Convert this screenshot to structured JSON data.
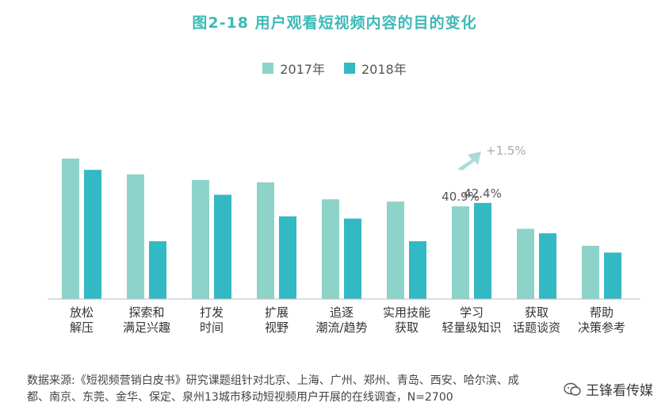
{
  "title": "图2-18   用户观看短视频内容的目的变化",
  "colors": {
    "series2017": "#8ed3c9",
    "series2018": "#33b9c3",
    "title": "#3dbab6",
    "arrow": "#a9ddd8"
  },
  "annotation": {
    "change": "+1.5%"
  },
  "chart_data": {
    "type": "bar",
    "categories": [
      [
        "放松",
        "解压"
      ],
      [
        "探索和",
        "满足兴趣"
      ],
      [
        "打发",
        "时间"
      ],
      [
        "扩展",
        "视野"
      ],
      [
        "追逐",
        "潮流/趋势"
      ],
      [
        "实用技能",
        "获取"
      ],
      [
        "学习",
        "轻量级知识"
      ],
      [
        "获取",
        "话题谈资"
      ],
      [
        "帮助",
        "决策参考"
      ]
    ],
    "series": [
      {
        "name": "2017年",
        "values": [
          62,
          55,
          52.5,
          51.5,
          44,
          43,
          40.9,
          31,
          23.5
        ]
      },
      {
        "name": "2018年",
        "values": [
          57,
          25.5,
          46,
          36.5,
          35.5,
          25.5,
          42.4,
          29,
          20.5
        ]
      }
    ],
    "data_labels": [
      {
        "category": 6,
        "series": 0,
        "text": "40.9%"
      },
      {
        "category": 6,
        "series": 1,
        "text": "42.4%"
      }
    ],
    "ylim": [
      0,
      70
    ],
    "grid": false,
    "legend": "top-center"
  },
  "source": "数据来源:《短视频营销白皮书》研究课题组针对北京、上海、广州、郑州、青岛、西安、哈尔滨、成都、南京、东莞、金华、保定、泉州13城市移动短视频用户开展的在线调查，N=2700",
  "watermark": "王锋看传媒"
}
